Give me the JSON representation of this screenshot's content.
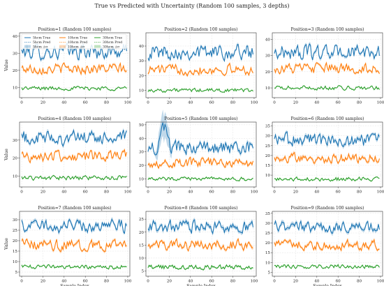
{
  "figure": {
    "title": "True vs Predicted with Uncertainty (Random 100 samples, 3 depths)"
  },
  "legend_labels": [
    "5hcm True",
    "5hcm Pred",
    "5hcm ±σ",
    "10hcm True",
    "10hcm Pred",
    "10hcm ±σ",
    "30hcm True",
    "30hcm Pred",
    "30hcm ±σ"
  ],
  "colors": {
    "s1": "#1f77b4",
    "s2": "#ff7f0e",
    "s3": "#2ca02c"
  },
  "chart_data": [
    {
      "type": "line",
      "title": "Position=1 (Random 100 samples)",
      "xlabel": "",
      "ylabel": "Value",
      "xlim": [
        -2,
        102
      ],
      "ylim": [
        4,
        42
      ],
      "xticks": [
        "0",
        "20",
        "40",
        "60",
        "80",
        "100"
      ],
      "yticks": [
        "10",
        "20",
        "30",
        "40"
      ],
      "grid": true,
      "legend": "upper-left",
      "series": [
        {
          "level": 31,
          "amp": 4.5,
          "sigma": 1.0
        },
        {
          "level": 21,
          "amp": 3.0,
          "sigma": 0.8
        },
        {
          "level": 9.5,
          "amp": 1.2,
          "sigma": 0.3
        }
      ]
    },
    {
      "type": "line",
      "title": "Position=2 (Random 100 samples)",
      "xlabel": "",
      "ylabel": "",
      "xlim": [
        -2,
        102
      ],
      "ylim": [
        5,
        49
      ],
      "xticks": [
        "0",
        "20",
        "40",
        "60",
        "80",
        "100"
      ],
      "yticks": [
        "10",
        "20",
        "30",
        "40"
      ],
      "grid": true,
      "series": [
        {
          "level": 36,
          "amp": 5.0,
          "sigma": 1.0
        },
        {
          "level": 24,
          "amp": 3.5,
          "sigma": 0.8
        },
        {
          "level": 10,
          "amp": 1.3,
          "sigma": 0.3
        }
      ]
    },
    {
      "type": "line",
      "title": "Position=3 (Random 100 samples)",
      "xlabel": "",
      "ylabel": "",
      "xlim": [
        -2,
        102
      ],
      "ylim": [
        4,
        44
      ],
      "xticks": [
        "0",
        "20",
        "40",
        "60",
        "80",
        "100"
      ],
      "yticks": [
        "10",
        "20",
        "30",
        "40"
      ],
      "grid": true,
      "series": [
        {
          "level": 32,
          "amp": 4.5,
          "sigma": 1.0
        },
        {
          "level": 22,
          "amp": 3.2,
          "sigma": 0.8
        },
        {
          "level": 10,
          "amp": 1.3,
          "sigma": 0.3
        }
      ]
    },
    {
      "type": "line",
      "title": "Position=4 (Random 100 samples)",
      "xlabel": "",
      "ylabel": "Value",
      "xlim": [
        -2,
        102
      ],
      "ylim": [
        4,
        40
      ],
      "xticks": [
        "0",
        "20",
        "40",
        "60",
        "80",
        "100"
      ],
      "yticks": [
        "10",
        "20",
        "30"
      ],
      "grid": true,
      "series": [
        {
          "level": 31,
          "amp": 4.0,
          "sigma": 1.0
        },
        {
          "level": 21,
          "amp": 3.0,
          "sigma": 0.8
        },
        {
          "level": 9,
          "amp": 1.2,
          "sigma": 0.3
        }
      ]
    },
    {
      "type": "line",
      "title": "Position=5 (Random 100 samples)",
      "xlabel": "",
      "ylabel": "",
      "xlim": [
        -2,
        102
      ],
      "ylim": [
        4,
        52
      ],
      "xticks": [
        "0",
        "20",
        "40",
        "60",
        "80",
        "100"
      ],
      "yticks": [
        "10",
        "20",
        "30",
        "40",
        "50"
      ],
      "grid": true,
      "series": [
        {
          "level": 33,
          "amp": 5.0,
          "sigma": 1.5,
          "spike": [
            15,
            26,
            12
          ]
        },
        {
          "level": 22,
          "amp": 3.5,
          "sigma": 1.0
        },
        {
          "level": 10,
          "amp": 1.3,
          "sigma": 0.4
        }
      ]
    },
    {
      "type": "line",
      "title": "Position=6 (Random 100 samples)",
      "xlabel": "",
      "ylabel": "",
      "xlim": [
        -2,
        102
      ],
      "ylim": [
        4,
        37
      ],
      "xticks": [
        "0",
        "20",
        "40",
        "60",
        "80",
        "100"
      ],
      "yticks": [
        "10",
        "15",
        "20",
        "25",
        "30",
        "35"
      ],
      "grid": true,
      "series": [
        {
          "level": 28,
          "amp": 3.5,
          "sigma": 1.0
        },
        {
          "level": 18.5,
          "amp": 2.5,
          "sigma": 0.8
        },
        {
          "level": 8,
          "amp": 1.0,
          "sigma": 0.3
        }
      ]
    },
    {
      "type": "line",
      "title": "Position=7 (Random 100 samples)",
      "xlabel": "Sample Index",
      "ylabel": "Value",
      "xlim": [
        -2,
        102
      ],
      "ylim": [
        3,
        34
      ],
      "xticks": [
        "0",
        "20",
        "40",
        "60",
        "80",
        "100"
      ],
      "yticks": [
        "5",
        "10",
        "15",
        "20",
        "25",
        "30"
      ],
      "grid": true,
      "series": [
        {
          "level": 27,
          "amp": 3.2,
          "sigma": 0.9
        },
        {
          "level": 18,
          "amp": 2.5,
          "sigma": 0.7
        },
        {
          "level": 7.5,
          "amp": 1.0,
          "sigma": 0.3
        }
      ]
    },
    {
      "type": "line",
      "title": "Position=8 (Random 100 samples)",
      "xlabel": "Sample Index",
      "ylabel": "",
      "xlim": [
        -2,
        102
      ],
      "ylim": [
        3,
        28
      ],
      "xticks": [
        "0",
        "20",
        "40",
        "60",
        "80",
        "100"
      ],
      "yticks": [
        "5",
        "10",
        "15",
        "20",
        "25"
      ],
      "grid": true,
      "series": [
        {
          "level": 22,
          "amp": 2.5,
          "sigma": 0.8
        },
        {
          "level": 15,
          "amp": 2.0,
          "sigma": 0.6
        },
        {
          "level": 6.5,
          "amp": 0.9,
          "sigma": 0.3
        }
      ]
    },
    {
      "type": "line",
      "title": "Position=9 (Random 100 samples)",
      "xlabel": "Sample Index",
      "ylabel": "",
      "xlim": [
        -2,
        102
      ],
      "ylim": [
        3,
        36
      ],
      "xticks": [
        "0",
        "20",
        "40",
        "60",
        "80",
        "100"
      ],
      "yticks": [
        "5",
        "10",
        "15",
        "20",
        "25",
        "30",
        "35"
      ],
      "grid": true,
      "series": [
        {
          "level": 28,
          "amp": 3.0,
          "sigma": 1.0
        },
        {
          "level": 19,
          "amp": 2.5,
          "sigma": 0.8
        },
        {
          "level": 8,
          "amp": 1.0,
          "sigma": 0.3
        }
      ]
    }
  ]
}
